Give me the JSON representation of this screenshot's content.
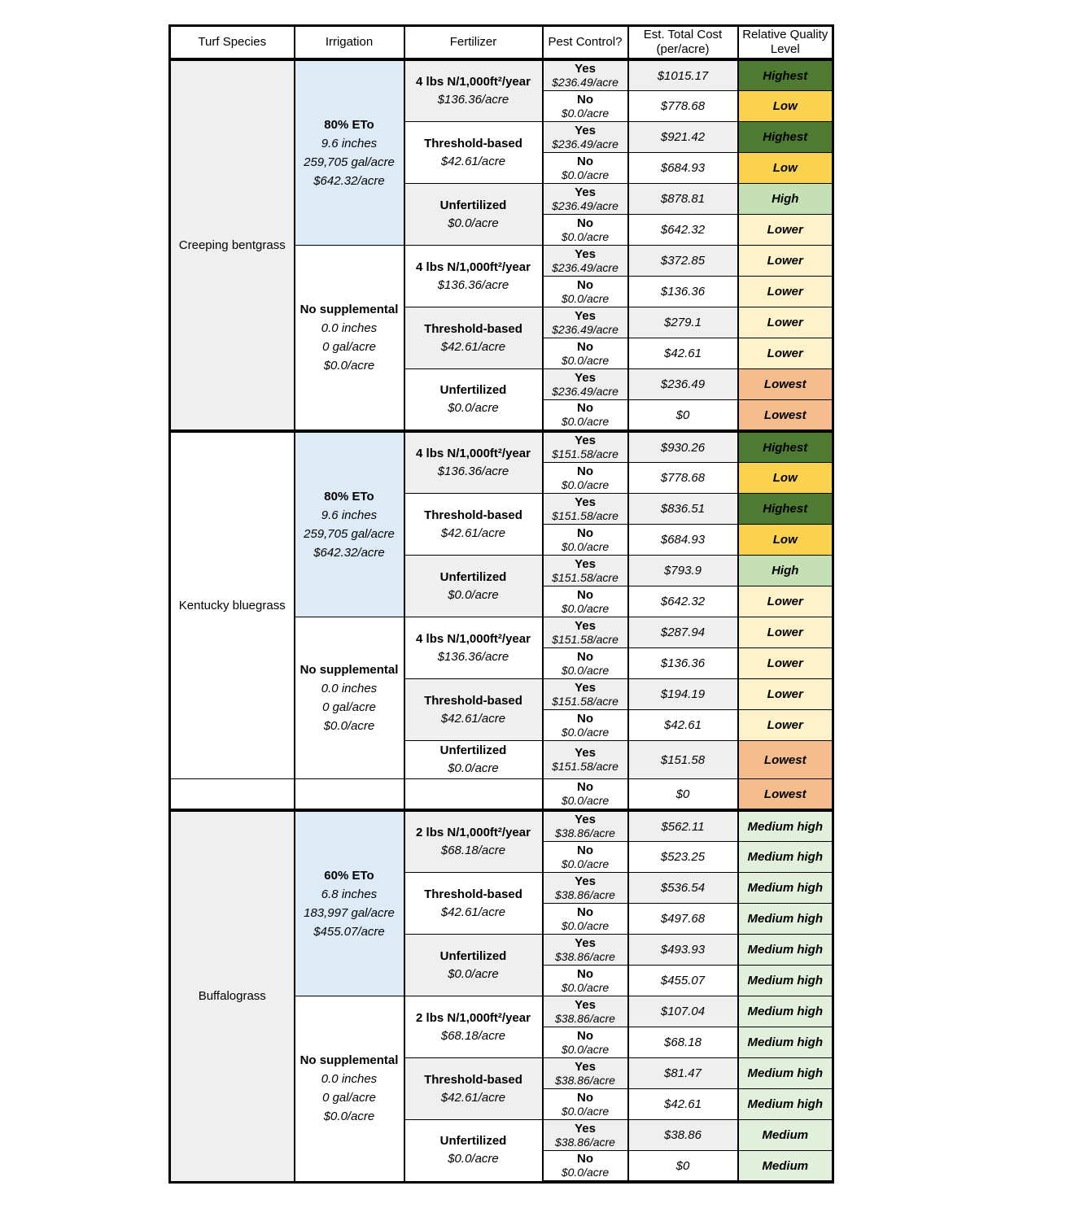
{
  "table": {
    "columns": [
      "Turf Species",
      "Irrigation",
      "Fertilizer",
      "Pest Control?",
      "Est. Total Cost (per/acre)",
      "Relative Quality Level"
    ],
    "quality_colors": {
      "Highest": "#4e7b31",
      "High": "#c5e0b4",
      "Medium high": "#e2efda",
      "Medium": "#e2efda",
      "Low": "#fbd24d",
      "Lower": "#fef2cb",
      "Lowest": "#f5bc8e"
    },
    "fill_colors": {
      "irrigated_cell": "#ddebf7",
      "shaded_cell": "#efefef"
    },
    "species": [
      {
        "name": "Creeping bentgrass",
        "groups": [
          {
            "irrigation": "80% ETo",
            "details": [
              "9.6 inches",
              "259,705 gal/acre",
              "$642.32/acre"
            ],
            "irrigated": true,
            "ferts": [
              {
                "name": "4 lbs N/1,000ft²/year",
                "cost": "$136.36/acre",
                "rows": [
                  {
                    "pest": "Yes",
                    "pest_cost": "$236.49/acre",
                    "total": "$1015.17",
                    "quality": "Highest"
                  },
                  {
                    "pest": "No",
                    "pest_cost": "$0.0/acre",
                    "total": "$778.68",
                    "quality": "Low"
                  }
                ]
              },
              {
                "name": "Threshold-based",
                "cost": "$42.61/acre",
                "rows": [
                  {
                    "pest": "Yes",
                    "pest_cost": "$236.49/acre",
                    "total": "$921.42",
                    "quality": "Highest"
                  },
                  {
                    "pest": "No",
                    "pest_cost": "$0.0/acre",
                    "total": "$684.93",
                    "quality": "Low"
                  }
                ]
              },
              {
                "name": "Unfertilized",
                "cost": "$0.0/acre",
                "rows": [
                  {
                    "pest": "Yes",
                    "pest_cost": "$236.49/acre",
                    "total": "$878.81",
                    "quality": "High"
                  },
                  {
                    "pest": "No",
                    "pest_cost": "$0.0/acre",
                    "total": "$642.32",
                    "quality": "Lower"
                  }
                ]
              }
            ]
          },
          {
            "irrigation": "No supplemental",
            "details": [
              "0.0 inches",
              "0 gal/acre",
              "$0.0/acre"
            ],
            "irrigated": false,
            "ferts": [
              {
                "name": "4 lbs N/1,000ft²/year",
                "cost": "$136.36/acre",
                "rows": [
                  {
                    "pest": "Yes",
                    "pest_cost": "$236.49/acre",
                    "total": "$372.85",
                    "quality": "Lower"
                  },
                  {
                    "pest": "No",
                    "pest_cost": "$0.0/acre",
                    "total": "$136.36",
                    "quality": "Lower"
                  }
                ]
              },
              {
                "name": "Threshold-based",
                "cost": "$42.61/acre",
                "rows": [
                  {
                    "pest": "Yes",
                    "pest_cost": "$236.49/acre",
                    "total": "$279.1",
                    "quality": "Lower"
                  },
                  {
                    "pest": "No",
                    "pest_cost": "$0.0/acre",
                    "total": "$42.61",
                    "quality": "Lower"
                  }
                ]
              },
              {
                "name": "Unfertilized",
                "cost": "$0.0/acre",
                "rows": [
                  {
                    "pest": "Yes",
                    "pest_cost": "$236.49/acre",
                    "total": "$236.49",
                    "quality": "Lowest"
                  },
                  {
                    "pest": "No",
                    "pest_cost": "$0.0/acre",
                    "total": "$0",
                    "quality": "Lowest"
                  }
                ]
              }
            ]
          }
        ]
      },
      {
        "name": "Kentucky bluegrass",
        "groups": [
          {
            "irrigation": "80% ETo",
            "details": [
              "9.6 inches",
              "259,705 gal/acre",
              "$642.32/acre"
            ],
            "irrigated": true,
            "ferts": [
              {
                "name": "4 lbs N/1,000ft²/year",
                "cost": "$136.36/acre",
                "rows": [
                  {
                    "pest": "Yes",
                    "pest_cost": "$151.58/acre",
                    "total": "$930.26",
                    "quality": "Highest"
                  },
                  {
                    "pest": "No",
                    "pest_cost": "$0.0/acre",
                    "total": "$778.68",
                    "quality": "Low"
                  }
                ]
              },
              {
                "name": "Threshold-based",
                "cost": "$42.61/acre",
                "rows": [
                  {
                    "pest": "Yes",
                    "pest_cost": "$151.58/acre",
                    "total": "$836.51",
                    "quality": "Highest"
                  },
                  {
                    "pest": "No",
                    "pest_cost": "$0.0/acre",
                    "total": "$684.93",
                    "quality": "Low"
                  }
                ]
              },
              {
                "name": "Unfertilized",
                "cost": "$0.0/acre",
                "rows": [
                  {
                    "pest": "Yes",
                    "pest_cost": "$151.58/acre",
                    "total": "$793.9",
                    "quality": "High"
                  },
                  {
                    "pest": "No",
                    "pest_cost": "$0.0/acre",
                    "total": "$642.32",
                    "quality": "Lower"
                  }
                ]
              }
            ]
          },
          {
            "irrigation": "No supplemental",
            "details": [
              "0.0 inches",
              "0 gal/acre",
              "$0.0/acre"
            ],
            "irrigated": false,
            "ferts": [
              {
                "name": "4 lbs N/1,000ft²/year",
                "cost": "$136.36/acre",
                "rows": [
                  {
                    "pest": "Yes",
                    "pest_cost": "$151.58/acre",
                    "total": "$287.94",
                    "quality": "Lower"
                  },
                  {
                    "pest": "No",
                    "pest_cost": "$0.0/acre",
                    "total": "$136.36",
                    "quality": "Lower"
                  }
                ]
              },
              {
                "name": "Threshold-based",
                "cost": "$42.61/acre",
                "rows": [
                  {
                    "pest": "Yes",
                    "pest_cost": "$151.58/acre",
                    "total": "$194.19",
                    "quality": "Lower"
                  },
                  {
                    "pest": "No",
                    "pest_cost": "$0.0/acre",
                    "total": "$42.61",
                    "quality": "Lower"
                  }
                ]
              },
              {
                "name": "Unfertilized",
                "cost": "$0.0/acre",
                "rows": [
                  {
                    "pest": "Yes",
                    "pest_cost": "$151.58/acre",
                    "total": "$151.58",
                    "quality": "Lowest"
                  }
                ]
              }
            ]
          }
        ],
        "extra_row": {
          "pest": "No",
          "pest_cost": "$0.0/acre",
          "total": "$0",
          "quality": "Lowest"
        }
      },
      {
        "name": "Buffalograss",
        "groups": [
          {
            "irrigation": "60% ETo",
            "details": [
              "6.8 inches",
              "183,997 gal/acre",
              "$455.07/acre"
            ],
            "irrigated": true,
            "ferts": [
              {
                "name": "2 lbs N/1,000ft²/year",
                "cost": "$68.18/acre",
                "rows": [
                  {
                    "pest": "Yes",
                    "pest_cost": "$38.86/acre",
                    "total": "$562.11",
                    "quality": "Medium high"
                  },
                  {
                    "pest": "No",
                    "pest_cost": "$0.0/acre",
                    "total": "$523.25",
                    "quality": "Medium high"
                  }
                ]
              },
              {
                "name": "Threshold-based",
                "cost": "$42.61/acre",
                "rows": [
                  {
                    "pest": "Yes",
                    "pest_cost": "$38.86/acre",
                    "total": "$536.54",
                    "quality": "Medium high"
                  },
                  {
                    "pest": "No",
                    "pest_cost": "$0.0/acre",
                    "total": "$497.68",
                    "quality": "Medium high"
                  }
                ]
              },
              {
                "name": "Unfertilized",
                "cost": "$0.0/acre",
                "rows": [
                  {
                    "pest": "Yes",
                    "pest_cost": "$38.86/acre",
                    "total": "$493.93",
                    "quality": "Medium high"
                  },
                  {
                    "pest": "No",
                    "pest_cost": "$0.0/acre",
                    "total": "$455.07",
                    "quality": "Medium high"
                  }
                ]
              }
            ]
          },
          {
            "irrigation": "No supplemental",
            "details": [
              "0.0 inches",
              "0 gal/acre",
              "$0.0/acre"
            ],
            "irrigated": false,
            "ferts": [
              {
                "name": "2 lbs N/1,000ft²/year",
                "cost": "$68.18/acre",
                "rows": [
                  {
                    "pest": "Yes",
                    "pest_cost": "$38.86/acre",
                    "total": "$107.04",
                    "quality": "Medium high"
                  },
                  {
                    "pest": "No",
                    "pest_cost": "$0.0/acre",
                    "total": "$68.18",
                    "quality": "Medium high"
                  }
                ]
              },
              {
                "name": "Threshold-based",
                "cost": "$42.61/acre",
                "rows": [
                  {
                    "pest": "Yes",
                    "pest_cost": "$38.86/acre",
                    "total": "$81.47",
                    "quality": "Medium high"
                  },
                  {
                    "pest": "No",
                    "pest_cost": "$0.0/acre",
                    "total": "$42.61",
                    "quality": "Medium high"
                  }
                ]
              },
              {
                "name": "Unfertilized",
                "cost": "$0.0/acre",
                "rows": [
                  {
                    "pest": "Yes",
                    "pest_cost": "$38.86/acre",
                    "total": "$38.86",
                    "quality": "Medium"
                  },
                  {
                    "pest": "No",
                    "pest_cost": "$0.0/acre",
                    "total": "$0",
                    "quality": "Medium"
                  }
                ]
              }
            ]
          }
        ]
      }
    ]
  }
}
